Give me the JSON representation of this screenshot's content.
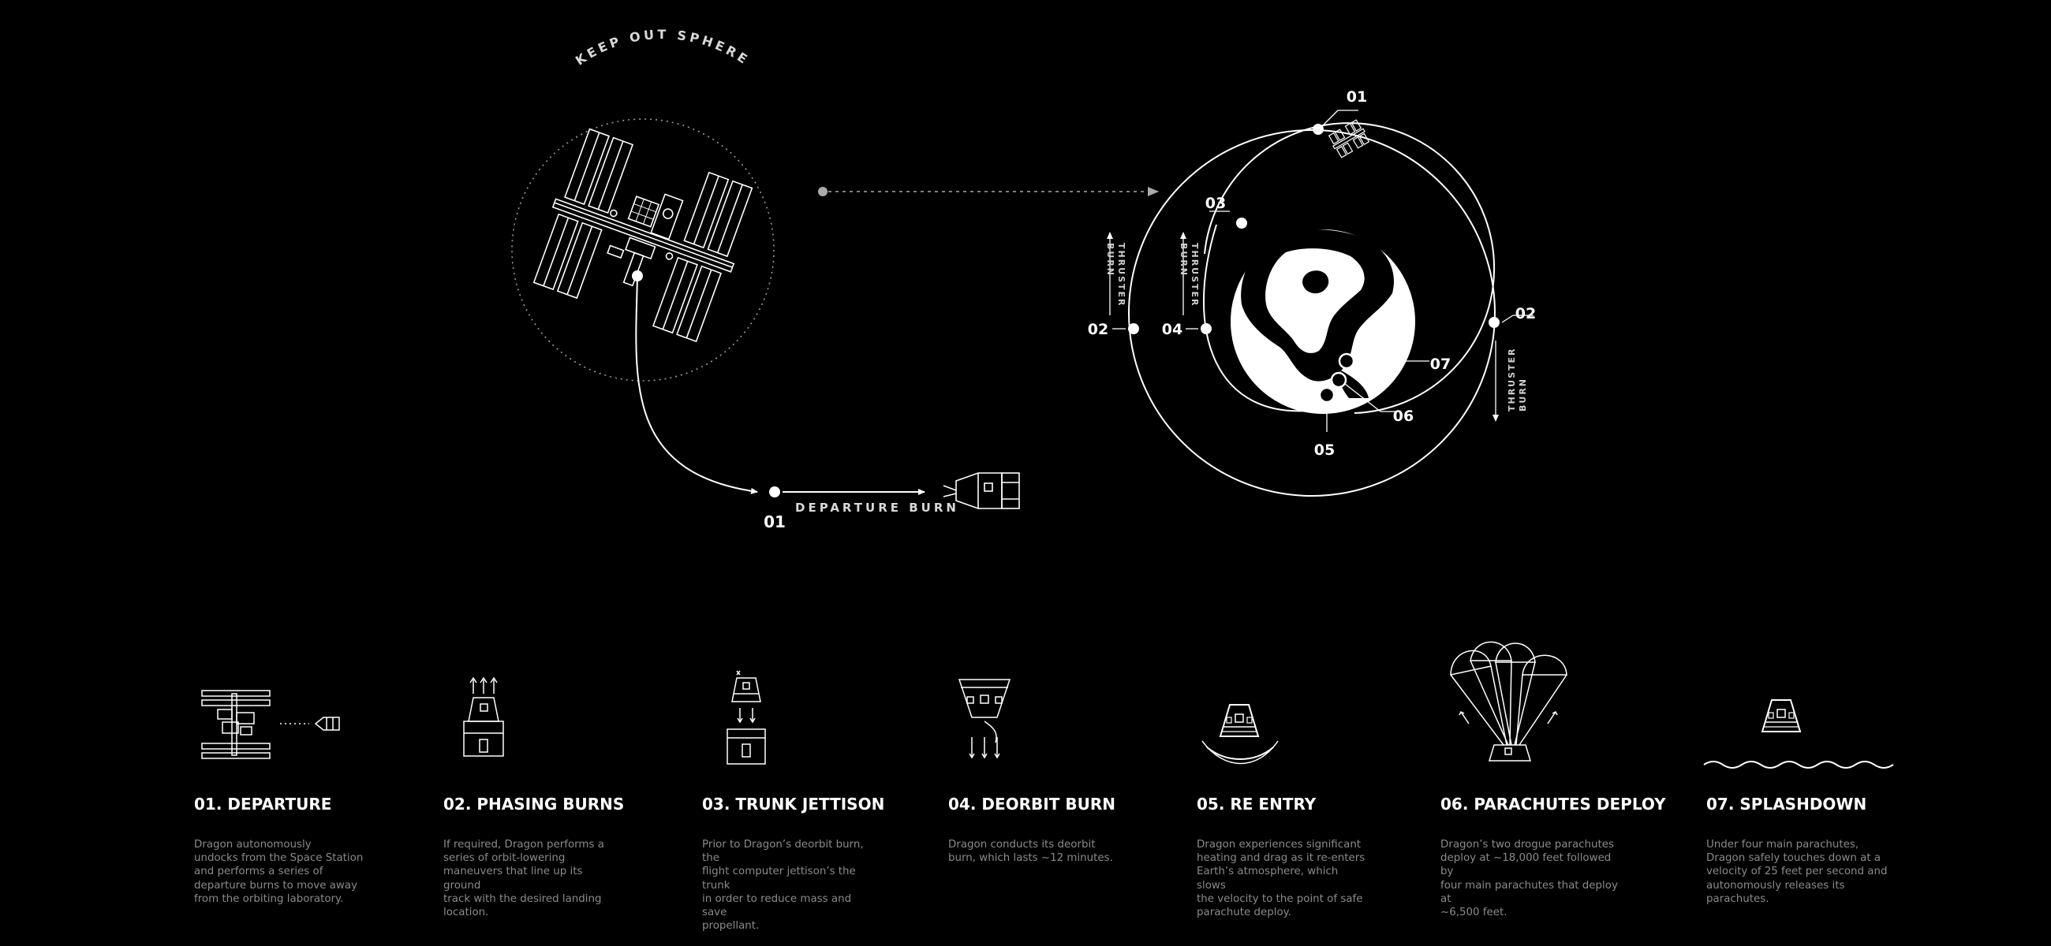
{
  "diagram": {
    "keep_out_sphere": "KEEP OUT SPHERE",
    "departure_burn": "DEPARTURE BURN",
    "thruster_burn_line1": "THRUSTER",
    "thruster_burn_line2": "BURN",
    "point_labels": {
      "iss_departure": "01",
      "orbit_start": "01",
      "outer_left": "02",
      "outer_right": "02",
      "inner_top": "03",
      "inner_left": "04",
      "entry": "05",
      "parachutes": "06",
      "splashdown": "07"
    }
  },
  "steps": [
    {
      "title": "01. DEPARTURE",
      "desc_lines": [
        "Dragon autonomously",
        "undocks from the Space Station",
        "and performs a series of",
        "departure burns to move away",
        "from the orbiting laboratory."
      ],
      "icon": "station-departure-icon"
    },
    {
      "title": "02. PHASING BURNS",
      "desc_lines": [
        "If required, Dragon performs a",
        "series of orbit-lowering",
        "maneuvers that line up its ground",
        "track with the desired landing",
        "location."
      ],
      "icon": "phasing-burn-icon"
    },
    {
      "title": "03. TRUNK JETTISON",
      "desc_lines": [
        "Prior to Dragon’s deorbit burn, the",
        "flight computer jettison’s the trunk",
        "in order to reduce mass and save",
        "propellant."
      ],
      "icon": "trunk-jettison-icon"
    },
    {
      "title": "04. DEORBIT BURN",
      "desc_lines": [
        "Dragon conducts its deorbit",
        "burn, which lasts ~12 minutes."
      ],
      "icon": "deorbit-burn-icon"
    },
    {
      "title": "05. RE ENTRY",
      "desc_lines": [
        "Dragon experiences significant",
        "heating and drag as it re-enters",
        "Earth’s atmosphere, which slows",
        "the velocity to the point of safe",
        "parachute deploy."
      ],
      "icon": "reentry-icon"
    },
    {
      "title": "06. PARACHUTES DEPLOY",
      "desc_lines": [
        "Dragon’s two drogue parachutes",
        "deploy at ~18,000 feet followed by",
        "four main parachutes that deploy at",
        "~6,500 feet."
      ],
      "icon": "parachutes-icon"
    },
    {
      "title": "07. SPLASHDOWN",
      "desc_lines": [
        "Under four main parachutes,",
        "Dragon safely touches down at a",
        "velocity of 25 feet per second and",
        "autonomously releases its",
        "parachutes."
      ],
      "icon": "splashdown-icon"
    }
  ]
}
